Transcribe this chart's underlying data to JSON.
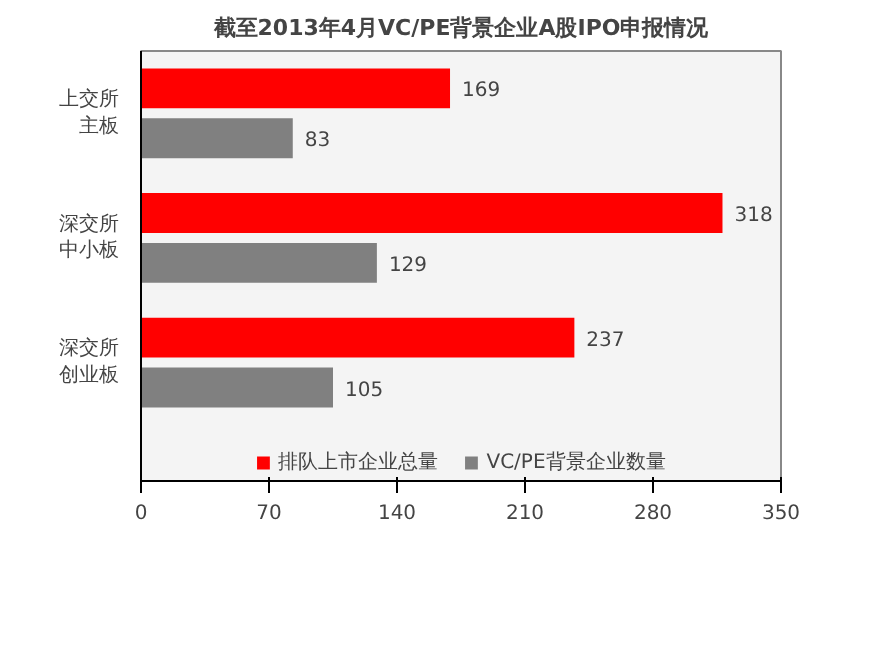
{
  "chart_data": {
    "type": "bar",
    "orientation": "horizontal",
    "title": "截至2013年4月VC/PE背景企业A股IPO申报情况",
    "categories": [
      "上交所主板",
      "深交所中小板",
      "深交所创业板"
    ],
    "series": [
      {
        "name": "排队上市企业总量",
        "color": "#ff0000",
        "values": [
          169,
          318,
          237
        ]
      },
      {
        "name": "VC/PE背景企业数量",
        "color": "#808080",
        "values": [
          83,
          129,
          105
        ]
      }
    ],
    "xlim": [
      0,
      350
    ],
    "xticks": [
      0,
      70,
      140,
      210,
      280,
      350
    ],
    "grid": false,
    "legend": "bottom",
    "data_labels": true
  }
}
